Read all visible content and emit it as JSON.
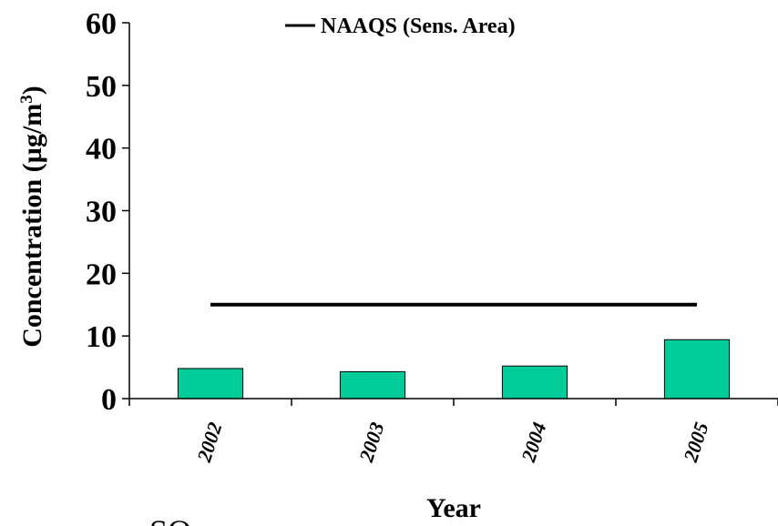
{
  "chart_data": {
    "type": "bar",
    "categories": [
      "2002",
      "2003",
      "2004",
      "2005"
    ],
    "series": [
      {
        "values": [
          4.8,
          4.3,
          5.2,
          9.4
        ],
        "color": "#00cc99"
      }
    ],
    "reference_line": {
      "name": "NAAQS (Sens. Area)",
      "value": 15,
      "color": "#000000"
    },
    "xlabel": "Year",
    "ylabel_main": "Concentration (µg/m",
    "ylabel_sup": "3",
    "ylabel_end": ")",
    "ylim": [
      0,
      60
    ],
    "yticks": [
      0,
      10,
      20,
      30,
      40,
      50,
      60
    ],
    "grid": false,
    "legend_position": "top-right"
  },
  "footer_text": "SO"
}
